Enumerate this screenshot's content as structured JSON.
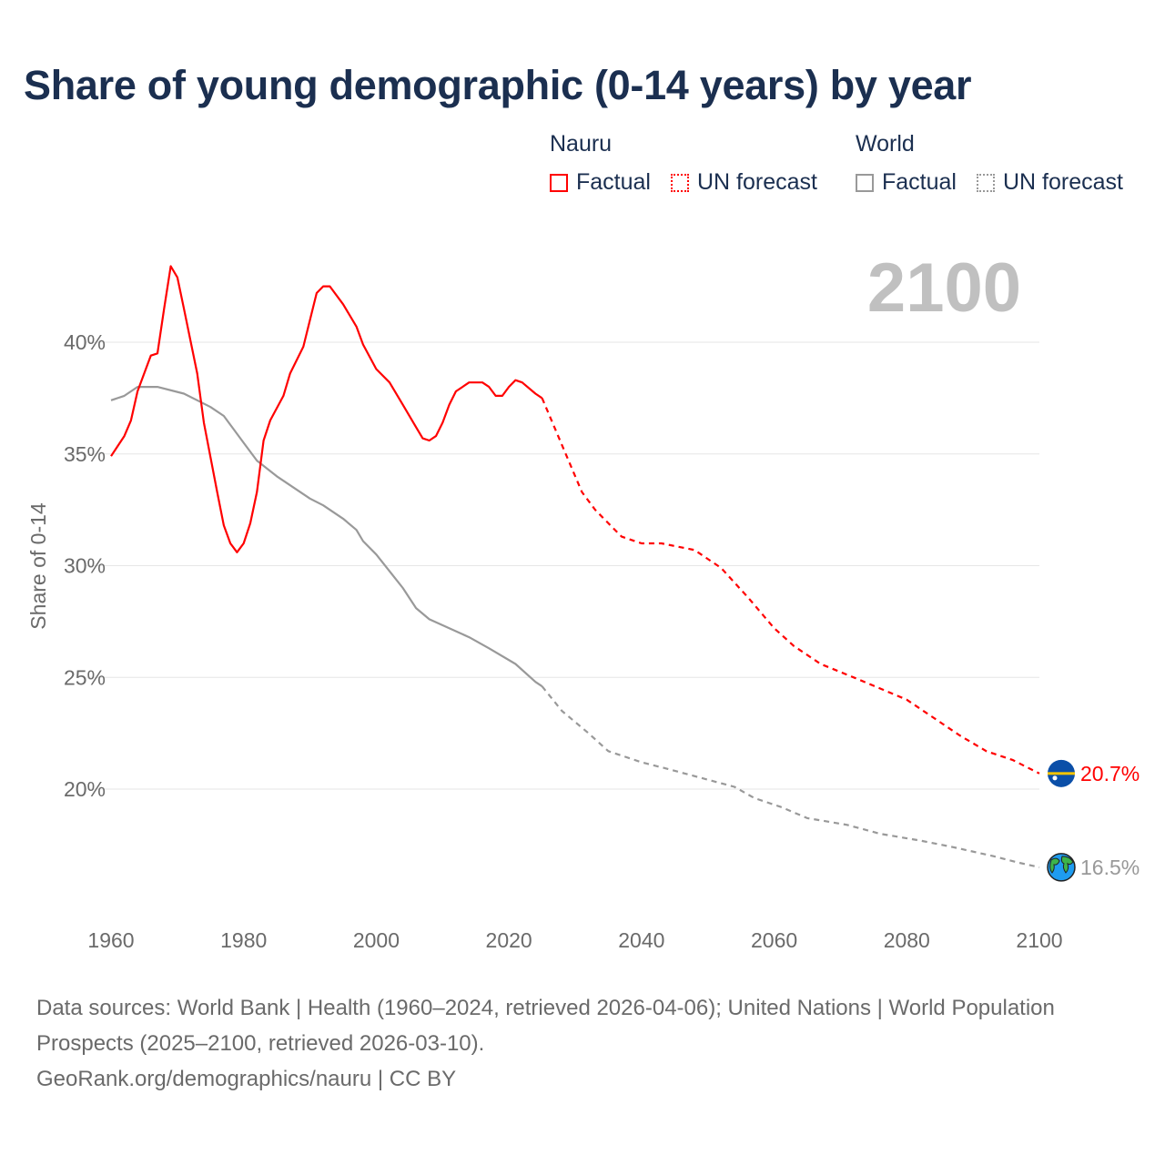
{
  "title": "Share of young demographic (0-14 years) by year",
  "legend": {
    "groups": [
      {
        "name": "Nauru",
        "factual": "Factual",
        "forecast": "UN forecast",
        "color": "#ff0000"
      },
      {
        "name": "World",
        "factual": "Factual",
        "forecast": "UN forecast",
        "color": "#999999"
      }
    ]
  },
  "year_display": "2100",
  "footer": {
    "sources": "Data sources: World Bank | Health (1960–2024, retrieved 2026-04-06); United Nations | World Population Prospects (2025–2100, retrieved 2026-03-10).",
    "credit": "GeoRank.org/demographics/nauru | CC BY"
  },
  "chart_data": {
    "type": "line",
    "title": "Share of young demographic (0-14 years) by year",
    "xlabel": "",
    "ylabel": "Share of 0-14",
    "xlim": [
      1960,
      2100
    ],
    "ylim": [
      15,
      44
    ],
    "x_ticks": [
      "1960",
      "1980",
      "2000",
      "2020",
      "2040",
      "2060",
      "2080",
      "2100"
    ],
    "y_ticks": [
      {
        "v": 20,
        "label": "20%"
      },
      {
        "v": 25,
        "label": "25%"
      },
      {
        "v": 30,
        "label": "30%"
      },
      {
        "v": 35,
        "label": "35%"
      },
      {
        "v": 40,
        "label": "40%"
      }
    ],
    "grid": true,
    "legend_position": "top-right",
    "series": [
      {
        "name": "Nauru",
        "kind": "factual",
        "color": "#ff0000",
        "x": [
          1960,
          1962,
          1963,
          1964,
          1965,
          1966,
          1967,
          1968,
          1969,
          1970,
          1971,
          1973,
          1974,
          1976,
          1977,
          1978,
          1979,
          1980,
          1981,
          1982,
          1983,
          1984,
          1986,
          1987,
          1989,
          1991,
          1992,
          1993,
          1995,
          1997,
          1998,
          2000,
          2002,
          2004,
          2006,
          2007,
          2008,
          2009,
          2010,
          2011,
          2012,
          2014,
          2016,
          2017,
          2018,
          2019,
          2020,
          2021,
          2022,
          2024,
          2025
        ],
        "y": [
          34.9,
          35.8,
          36.5,
          37.8,
          38.6,
          39.4,
          39.5,
          41.5,
          43.4,
          42.9,
          41.5,
          38.6,
          36.4,
          33.3,
          31.8,
          31.0,
          30.6,
          31.0,
          31.9,
          33.3,
          35.6,
          36.5,
          37.6,
          38.6,
          39.8,
          42.2,
          42.5,
          42.5,
          41.7,
          40.7,
          39.9,
          38.8,
          38.2,
          37.2,
          36.2,
          35.7,
          35.6,
          35.8,
          36.4,
          37.2,
          37.8,
          38.2,
          38.2,
          38.0,
          37.6,
          37.6,
          38.0,
          38.3,
          38.2,
          37.7,
          37.5
        ]
      },
      {
        "name": "Nauru",
        "kind": "forecast",
        "color": "#ff0000",
        "x": [
          2025,
          2028,
          2031,
          2033,
          2035,
          2037,
          2040,
          2043,
          2048,
          2052,
          2056,
          2060,
          2063,
          2067,
          2072,
          2076,
          2080,
          2084,
          2088,
          2092,
          2096,
          2098,
          2100
        ],
        "y": [
          37.5,
          35.4,
          33.3,
          32.5,
          31.9,
          31.3,
          31.0,
          31.0,
          30.7,
          29.9,
          28.6,
          27.2,
          26.4,
          25.6,
          25.0,
          24.5,
          24.0,
          23.2,
          22.4,
          21.7,
          21.3,
          21.0,
          20.7
        ]
      },
      {
        "name": "World",
        "kind": "factual",
        "color": "#999999",
        "x": [
          1960,
          1962,
          1964,
          1967,
          1971,
          1973,
          1975,
          1977,
          1980,
          1982,
          1985,
          1990,
          1992,
          1995,
          1997,
          1998,
          2000,
          2004,
          2006,
          2008,
          2011,
          2014,
          2017,
          2021,
          2024,
          2025
        ],
        "y": [
          37.4,
          37.6,
          38.0,
          38.0,
          37.7,
          37.4,
          37.1,
          36.7,
          35.5,
          34.7,
          34.0,
          33.0,
          32.7,
          32.1,
          31.6,
          31.1,
          30.5,
          29.0,
          28.1,
          27.6,
          27.2,
          26.8,
          26.3,
          25.6,
          24.8,
          24.6
        ]
      },
      {
        "name": "World",
        "kind": "forecast",
        "color": "#999999",
        "x": [
          2025,
          2028,
          2032,
          2035,
          2040,
          2044,
          2049,
          2054,
          2057,
          2061,
          2065,
          2071,
          2076,
          2082,
          2087,
          2093,
          2097,
          2100
        ],
        "y": [
          24.6,
          23.5,
          22.5,
          21.7,
          21.2,
          20.9,
          20.5,
          20.1,
          19.6,
          19.2,
          18.7,
          18.4,
          18.0,
          17.7,
          17.4,
          17.0,
          16.7,
          16.5
        ]
      }
    ],
    "end_labels": [
      {
        "series": "Nauru",
        "label": "20.7%",
        "value": 20.7,
        "icon": "nauru-flag-icon",
        "color": "#ff0000"
      },
      {
        "series": "World",
        "label": "16.5%",
        "value": 16.5,
        "icon": "globe-icon",
        "color": "#999999"
      }
    ]
  }
}
